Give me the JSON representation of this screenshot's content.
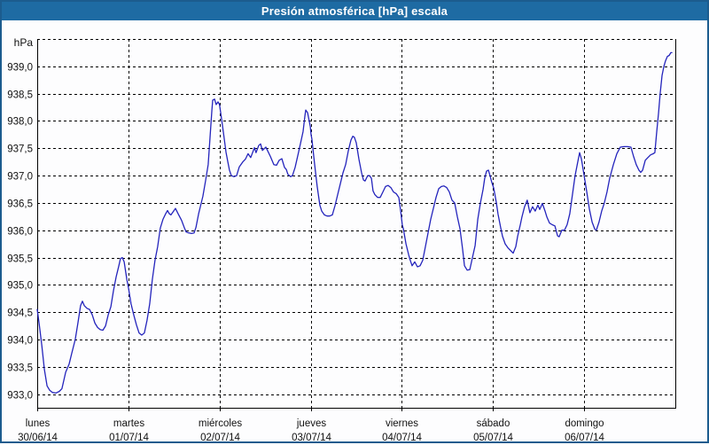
{
  "title": "Presión atmosférica [hPa] escala",
  "colors": {
    "titlebar": "#1e6ba3",
    "window_border": "#1c5c8e",
    "background": "#fdfdfe",
    "line": "#2424bc",
    "grid": "#000000",
    "text": "#111111"
  },
  "chart_data": {
    "type": "line",
    "title": "Presión atmosférica [hPa] escala",
    "unit": "hPa",
    "ylabel": "hPa",
    "xlabel": "",
    "grid": "dashed",
    "legend": "none",
    "ylim": [
      932.75,
      939.5
    ],
    "y_ticks": [
      939.0,
      938.5,
      938.0,
      937.5,
      937.0,
      936.5,
      936.0,
      935.5,
      935.0,
      934.5,
      934.0,
      933.5,
      933.0
    ],
    "y_tick_labels": [
      "939,0",
      "938,5",
      "938,0",
      "937,5",
      "937,0",
      "936,5",
      "936,0",
      "935,5",
      "935,0",
      "934,5",
      "934,0",
      "933,5",
      "933,0"
    ],
    "x_unit": "hours since 30/06/14 00:00",
    "xlim": [
      0,
      168
    ],
    "x_day_ticks": [
      {
        "hour": 0,
        "day": "lunes",
        "date": "30/06/14"
      },
      {
        "hour": 24,
        "day": "martes",
        "date": "01/07/14"
      },
      {
        "hour": 48,
        "day": "miércoles",
        "date": "02/07/14"
      },
      {
        "hour": 72,
        "day": "jueves",
        "date": "03/07/14"
      },
      {
        "hour": 96,
        "day": "viernes",
        "date": "04/07/14"
      },
      {
        "hour": 120,
        "day": "sábado",
        "date": "05/07/14"
      },
      {
        "hour": 144,
        "day": "domingo",
        "date": "06/07/14"
      }
    ],
    "series": [
      {
        "name": "Presión atmosférica [hPa]",
        "points": [
          [
            0,
            934.55
          ],
          [
            0.5,
            934.3
          ],
          [
            1.2,
            933.9
          ],
          [
            1.9,
            933.45
          ],
          [
            2.6,
            933.15
          ],
          [
            3.3,
            933.07
          ],
          [
            4,
            933.03
          ],
          [
            4.9,
            933.02
          ],
          [
            5.8,
            933.05
          ],
          [
            6.5,
            933.1
          ],
          [
            7.5,
            933.4
          ],
          [
            8.4,
            933.55
          ],
          [
            9.1,
            933.75
          ],
          [
            10,
            934.0
          ],
          [
            10.7,
            934.3
          ],
          [
            11.4,
            934.62
          ],
          [
            11.9,
            934.7
          ],
          [
            12.4,
            934.62
          ],
          [
            13.1,
            934.57
          ],
          [
            13.8,
            934.55
          ],
          [
            14.5,
            934.45
          ],
          [
            15.2,
            934.3
          ],
          [
            15.9,
            934.22
          ],
          [
            16.6,
            934.18
          ],
          [
            17.3,
            934.17
          ],
          [
            18,
            934.25
          ],
          [
            18.7,
            934.45
          ],
          [
            19.4,
            934.6
          ],
          [
            20.1,
            934.9
          ],
          [
            20.8,
            935.15
          ],
          [
            21.5,
            935.35
          ],
          [
            21.9,
            935.48
          ],
          [
            22.4,
            935.5
          ],
          [
            22.9,
            935.42
          ],
          [
            23.6,
            935.1
          ],
          [
            24,
            934.95
          ],
          [
            24.7,
            934.65
          ],
          [
            25.4,
            934.45
          ],
          [
            26.1,
            934.27
          ],
          [
            26.8,
            934.12
          ],
          [
            27.5,
            934.08
          ],
          [
            28.2,
            934.12
          ],
          [
            28.9,
            934.35
          ],
          [
            29.6,
            934.65
          ],
          [
            30.3,
            935.1
          ],
          [
            31,
            935.45
          ],
          [
            31.7,
            935.7
          ],
          [
            32.4,
            936.04
          ],
          [
            33.1,
            936.2
          ],
          [
            33.8,
            936.3
          ],
          [
            34.3,
            936.36
          ],
          [
            34.8,
            936.3
          ],
          [
            35.2,
            936.28
          ],
          [
            35.9,
            936.35
          ],
          [
            36.4,
            936.4
          ],
          [
            37.1,
            936.3
          ],
          [
            38,
            936.18
          ],
          [
            38.7,
            936.05
          ],
          [
            39.2,
            935.97
          ],
          [
            39.9,
            935.95
          ],
          [
            40.6,
            935.94
          ],
          [
            41.3,
            935.95
          ],
          [
            41.8,
            936.05
          ],
          [
            42.5,
            936.3
          ],
          [
            43.2,
            936.5
          ],
          [
            43.6,
            936.62
          ],
          [
            44.3,
            936.9
          ],
          [
            45,
            937.2
          ],
          [
            45.5,
            937.7
          ],
          [
            46,
            938.2
          ],
          [
            46.2,
            938.38
          ],
          [
            46.7,
            938.4
          ],
          [
            47.1,
            938.3
          ],
          [
            47.6,
            938.35
          ],
          [
            48,
            938.3
          ],
          [
            48.5,
            938.05
          ],
          [
            49,
            937.8
          ],
          [
            49.7,
            937.43
          ],
          [
            50.2,
            937.25
          ],
          [
            50.6,
            937.1
          ],
          [
            51.1,
            937.0
          ],
          [
            51.8,
            936.98
          ],
          [
            52.5,
            937.0
          ],
          [
            53.2,
            937.16
          ],
          [
            54.1,
            937.25
          ],
          [
            54.8,
            937.3
          ],
          [
            55.5,
            937.4
          ],
          [
            56.2,
            937.33
          ],
          [
            57.2,
            937.51
          ],
          [
            57.6,
            937.42
          ],
          [
            58.3,
            937.55
          ],
          [
            58.8,
            937.58
          ],
          [
            59.3,
            937.46
          ],
          [
            60.2,
            937.52
          ],
          [
            60.9,
            937.42
          ],
          [
            61.4,
            937.35
          ],
          [
            62.3,
            937.2
          ],
          [
            63,
            937.19
          ],
          [
            63.7,
            937.28
          ],
          [
            64.4,
            937.31
          ],
          [
            65.1,
            937.15
          ],
          [
            65.6,
            937.11
          ],
          [
            66,
            937.02
          ],
          [
            66.7,
            936.98
          ],
          [
            67.2,
            937.0
          ],
          [
            67.9,
            937.15
          ],
          [
            68.8,
            937.43
          ],
          [
            69.5,
            937.65
          ],
          [
            70,
            937.81
          ],
          [
            70.5,
            938.1
          ],
          [
            70.7,
            938.2
          ],
          [
            71.2,
            938.15
          ],
          [
            71.9,
            937.9
          ],
          [
            72.1,
            937.75
          ],
          [
            72.3,
            937.67
          ],
          [
            73,
            937.22
          ],
          [
            73.7,
            936.8
          ],
          [
            74.4,
            936.46
          ],
          [
            74.9,
            936.35
          ],
          [
            75.6,
            936.28
          ],
          [
            76.3,
            936.26
          ],
          [
            77,
            936.26
          ],
          [
            77.7,
            936.28
          ],
          [
            78.4,
            936.45
          ],
          [
            79.1,
            936.65
          ],
          [
            79.8,
            936.85
          ],
          [
            80.5,
            937.05
          ],
          [
            81.2,
            937.2
          ],
          [
            81.9,
            937.45
          ],
          [
            82.6,
            937.65
          ],
          [
            83.1,
            937.72
          ],
          [
            83.5,
            937.7
          ],
          [
            84,
            937.6
          ],
          [
            84.7,
            937.3
          ],
          [
            85.4,
            937.05
          ],
          [
            85.9,
            936.92
          ],
          [
            86.3,
            936.9
          ],
          [
            87,
            937.0
          ],
          [
            87.5,
            937.0
          ],
          [
            88,
            936.95
          ],
          [
            88.4,
            936.72
          ],
          [
            88.9,
            936.65
          ],
          [
            89.6,
            936.6
          ],
          [
            90.3,
            936.6
          ],
          [
            91,
            936.7
          ],
          [
            91.7,
            936.8
          ],
          [
            92.4,
            936.82
          ],
          [
            93.1,
            936.78
          ],
          [
            93.8,
            936.7
          ],
          [
            94.5,
            936.67
          ],
          [
            95.2,
            936.6
          ],
          [
            95.7,
            936.35
          ],
          [
            96.1,
            936.1
          ],
          [
            96.4,
            936.03
          ],
          [
            97.1,
            935.75
          ],
          [
            97.8,
            935.55
          ],
          [
            98.2,
            935.45
          ],
          [
            98.7,
            935.35
          ],
          [
            99.4,
            935.42
          ],
          [
            100.1,
            935.33
          ],
          [
            100.8,
            935.35
          ],
          [
            101.5,
            935.45
          ],
          [
            102.2,
            935.7
          ],
          [
            102.9,
            935.95
          ],
          [
            103.6,
            936.2
          ],
          [
            104.3,
            936.4
          ],
          [
            105,
            936.6
          ],
          [
            105.7,
            936.76
          ],
          [
            106.4,
            936.8
          ],
          [
            107.1,
            936.81
          ],
          [
            107.8,
            936.78
          ],
          [
            108.5,
            936.7
          ],
          [
            109.2,
            936.55
          ],
          [
            109.9,
            936.5
          ],
          [
            110.6,
            936.25
          ],
          [
            111.3,
            936.03
          ],
          [
            112,
            935.65
          ],
          [
            112.5,
            935.35
          ],
          [
            113.2,
            935.27
          ],
          [
            113.9,
            935.28
          ],
          [
            114.6,
            935.5
          ],
          [
            115.3,
            935.72
          ],
          [
            116,
            936.2
          ],
          [
            116.7,
            936.5
          ],
          [
            117.4,
            936.75
          ],
          [
            117.8,
            936.95
          ],
          [
            118.3,
            937.08
          ],
          [
            118.8,
            937.1
          ],
          [
            119.2,
            937.0
          ],
          [
            119.7,
            936.87
          ],
          [
            120.2,
            936.77
          ],
          [
            120.9,
            936.5
          ],
          [
            121.3,
            936.3
          ],
          [
            122,
            936.05
          ],
          [
            122.5,
            935.89
          ],
          [
            123.2,
            935.75
          ],
          [
            123.9,
            935.68
          ],
          [
            124.6,
            935.63
          ],
          [
            125.3,
            935.58
          ],
          [
            126,
            935.7
          ],
          [
            126.5,
            935.89
          ],
          [
            127.2,
            936.1
          ],
          [
            127.6,
            936.24
          ],
          [
            128.3,
            936.43
          ],
          [
            129,
            936.55
          ],
          [
            129.7,
            936.32
          ],
          [
            130.4,
            936.43
          ],
          [
            131.1,
            936.35
          ],
          [
            131.8,
            936.46
          ],
          [
            132.3,
            936.38
          ],
          [
            133,
            936.49
          ],
          [
            133.7,
            936.35
          ],
          [
            134.2,
            936.24
          ],
          [
            134.9,
            936.13
          ],
          [
            135.6,
            936.1
          ],
          [
            136.3,
            936.08
          ],
          [
            137,
            935.9
          ],
          [
            137.4,
            935.88
          ],
          [
            138.1,
            936.0
          ],
          [
            138.8,
            936.0
          ],
          [
            139.5,
            936.1
          ],
          [
            140.2,
            936.3
          ],
          [
            140.9,
            936.65
          ],
          [
            141.6,
            937.0
          ],
          [
            142.3,
            937.25
          ],
          [
            142.8,
            937.42
          ],
          [
            143.3,
            937.3
          ],
          [
            144,
            937.0
          ],
          [
            144.7,
            936.7
          ],
          [
            145.4,
            936.38
          ],
          [
            146.1,
            936.15
          ],
          [
            146.8,
            936.02
          ],
          [
            147.2,
            936.0
          ],
          [
            147.9,
            936.15
          ],
          [
            148.6,
            936.35
          ],
          [
            149.3,
            936.5
          ],
          [
            150,
            936.7
          ],
          [
            150.7,
            936.95
          ],
          [
            151.7,
            937.2
          ],
          [
            152.6,
            937.4
          ],
          [
            153.5,
            937.52
          ],
          [
            154.5,
            937.53
          ],
          [
            155.4,
            937.53
          ],
          [
            156.3,
            937.52
          ],
          [
            157,
            937.35
          ],
          [
            157.7,
            937.2
          ],
          [
            158.4,
            937.1
          ],
          [
            158.9,
            937.06
          ],
          [
            159.4,
            937.1
          ],
          [
            160.1,
            937.28
          ],
          [
            160.8,
            937.33
          ],
          [
            161.5,
            937.38
          ],
          [
            162.2,
            937.4
          ],
          [
            162.6,
            937.42
          ],
          [
            163.1,
            937.8
          ],
          [
            163.6,
            938.15
          ],
          [
            164,
            938.5
          ],
          [
            164.5,
            938.83
          ],
          [
            165,
            939.0
          ],
          [
            165.4,
            939.1
          ],
          [
            165.9,
            939.18
          ],
          [
            166.4,
            939.2
          ],
          [
            166.8,
            939.25
          ],
          [
            167.1,
            939.25
          ]
        ]
      }
    ]
  }
}
